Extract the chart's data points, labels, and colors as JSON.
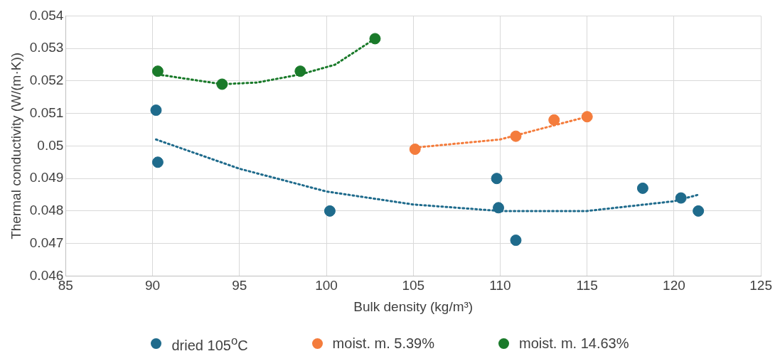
{
  "chart_data": {
    "type": "scatter",
    "xlabel": "Bulk density (kg/m³)",
    "ylabel": "Thermal conductivity (W/(m·K))",
    "xlim": [
      85,
      125
    ],
    "xticks": [
      85,
      90,
      95,
      100,
      105,
      110,
      115,
      120,
      125
    ],
    "ylim": [
      0.046,
      0.054
    ],
    "yticks": [
      0.046,
      0.047,
      0.048,
      0.049,
      0.05,
      0.051,
      0.052,
      0.053,
      0.054
    ],
    "grid": true,
    "legend": "bottom",
    "marker": "circle",
    "series": [
      {
        "name": "dried 105$^{o}$C",
        "color": "#1f6b8c",
        "x": [
          90.2,
          90.3,
          100.2,
          109.8,
          109.9,
          110.9,
          118.2,
          120.4,
          121.4
        ],
        "values": [
          0.0511,
          0.0495,
          0.048,
          0.049,
          0.0481,
          0.0471,
          0.0487,
          0.0484,
          0.048
        ]
      },
      {
        "name": "moist. m. 5.39%",
        "color": "#f47c3c",
        "x": [
          105.1,
          110.9,
          113.1,
          115.0
        ],
        "values": [
          0.0499,
          0.0503,
          0.0508,
          0.0509
        ]
      },
      {
        "name": "moist. m. 14.63%",
        "color": "#1a7a2a",
        "x": [
          90.3,
          94.0,
          98.5,
          102.8
        ],
        "values": [
          0.0523,
          0.0519,
          0.0523,
          0.0533
        ]
      },
      {
        "type": "line",
        "color": "#1f6b8c",
        "line_style": "dotted",
        "marker": "none",
        "x": [
          90.2,
          95,
          100,
          105,
          110,
          115,
          120,
          121.4
        ],
        "values": [
          0.0502,
          0.0493,
          0.0486,
          0.0482,
          0.048,
          0.048,
          0.0483,
          0.0485
        ]
      },
      {
        "type": "line",
        "color": "#f47c3c",
        "line_style": "dotted",
        "marker": "none",
        "x": [
          105.1,
          110,
          115.0
        ],
        "values": [
          0.04995,
          0.0502,
          0.0509
        ]
      },
      {
        "type": "line",
        "color": "#1a7a2a",
        "line_style": "dotted",
        "marker": "none",
        "x": [
          90.3,
          94,
          96,
          98.5,
          100.5,
          102.8
        ],
        "values": [
          0.0522,
          0.0519,
          0.05195,
          0.0522,
          0.0525,
          0.0533
        ]
      }
    ]
  }
}
